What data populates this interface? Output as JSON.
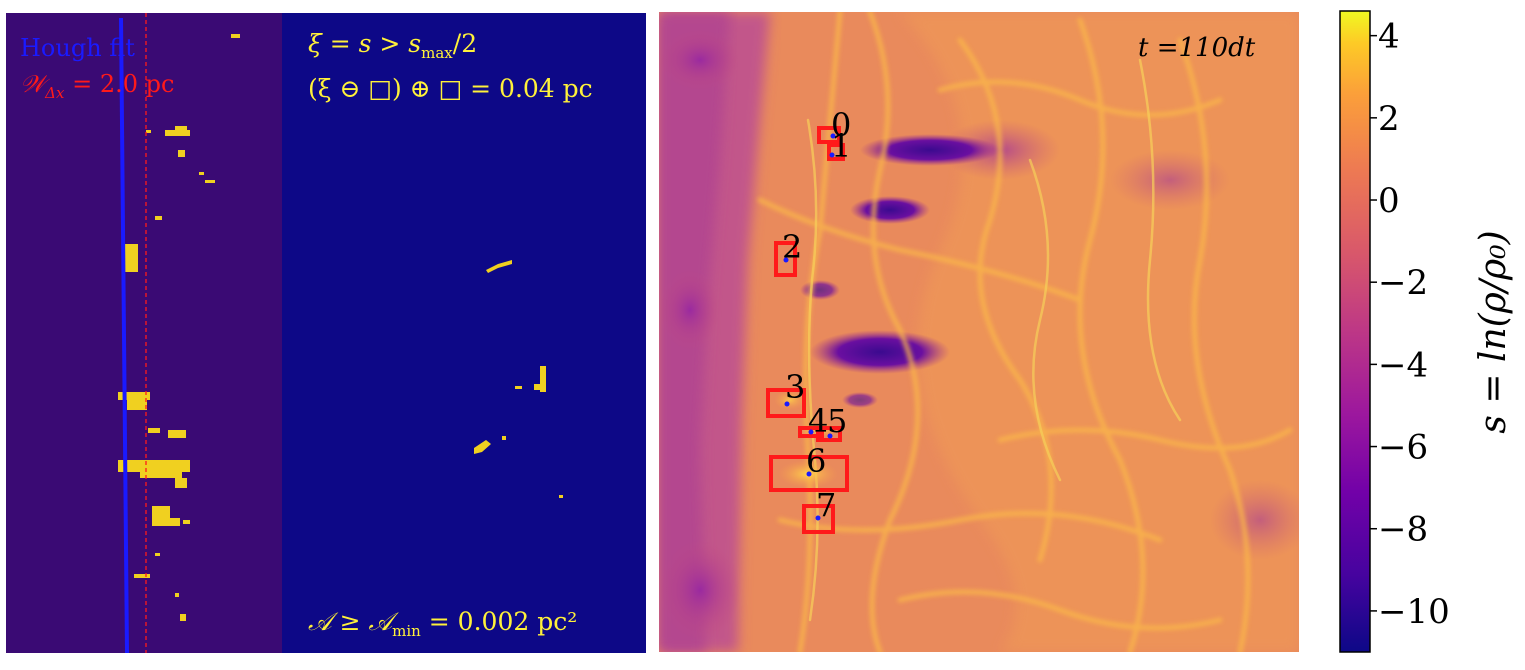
{
  "panels": {
    "hough": {
      "legend_hough": "Hough fit",
      "legend_width": "𝒲",
      "legend_width_sub": "Δx",
      "legend_width_eq": " = 2.0 pc"
    },
    "mask": {
      "line1": "ξ = s > s",
      "line1_sub": "max",
      "line1_end": "/2",
      "line2": "(ξ ⊖ □) ⊕ □ = 0.04 pc",
      "line3": "𝒜 ≥ 𝒜",
      "line3_sub": "min",
      "line3_end": " = 0.002 pc²"
    },
    "density": {
      "time_label": "t =110dt"
    }
  },
  "colors": {
    "mask_background": "#0d0887",
    "strip_background": "#3a0a74",
    "mask_yellow": "#f0d020",
    "hough_line": "#1a1aff",
    "box_red": "#ff1a1a",
    "text_yellow": "#fff13a"
  },
  "colorbar": {
    "label": "s = ln(ρ/ρ₀)",
    "ticks": [
      "4",
      "2",
      "0",
      "−2",
      "−4",
      "−6",
      "−8",
      "−10"
    ],
    "tick_values": [
      4,
      2,
      0,
      -2,
      -4,
      -6,
      -8,
      -10
    ],
    "range": [
      -11,
      4.6
    ],
    "colormap": "plasma"
  },
  "chart_data": {
    "type": "heatmap",
    "variable": "s = ln(ρ/ρ₀)",
    "time": "t =110dt",
    "structure_labels": [
      "0",
      "1",
      "2",
      "3",
      "4",
      "5",
      "6",
      "7"
    ],
    "hough_fit_width_pc": 2.0,
    "morphology_scale_pc": 0.04,
    "min_area_pc2": 0.002,
    "threshold": "s > s_max/2",
    "colorbar_range": [
      -11,
      4.6
    ],
    "colorbar_ticks": [
      4,
      2,
      0,
      -2,
      -4,
      -6,
      -8,
      -10
    ]
  }
}
